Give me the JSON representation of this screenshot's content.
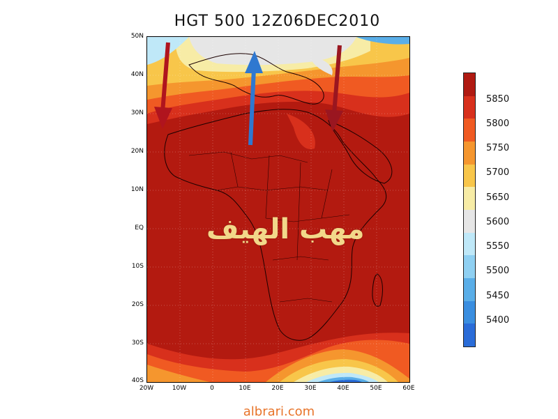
{
  "title": "HGT 500 12Z06DEC2010",
  "overlay_text": "مهب الهيف",
  "footer": "albrari.com",
  "lat_labels": [
    "50N",
    "40N",
    "30N",
    "20N",
    "10N",
    "EQ",
    "10S",
    "20S",
    "30S",
    "40S"
  ],
  "lon_labels": [
    "20W",
    "10W",
    "0",
    "10E",
    "20E",
    "30E",
    "40E",
    "50E",
    "60E"
  ],
  "colorbar": {
    "labels": [
      "5850",
      "5800",
      "5750",
      "5700",
      "5650",
      "5600",
      "5550",
      "5500",
      "5450",
      "5400"
    ],
    "colors": [
      "#b01a12",
      "#d8301c",
      "#f05a22",
      "#f5962e",
      "#f8c64a",
      "#f7eca6",
      "#e6e6e6",
      "#bfe8f8",
      "#8fd0f2",
      "#5aaee8",
      "#3a8ee0",
      "#2a6cd8"
    ]
  },
  "arrows": [
    {
      "name": "west-arrow",
      "color": "#b0141e",
      "direction": "south"
    },
    {
      "name": "north-arrow",
      "color": "#2f78d0",
      "direction": "north"
    },
    {
      "name": "east-arrow",
      "color": "#9a1620",
      "direction": "south"
    }
  ]
}
